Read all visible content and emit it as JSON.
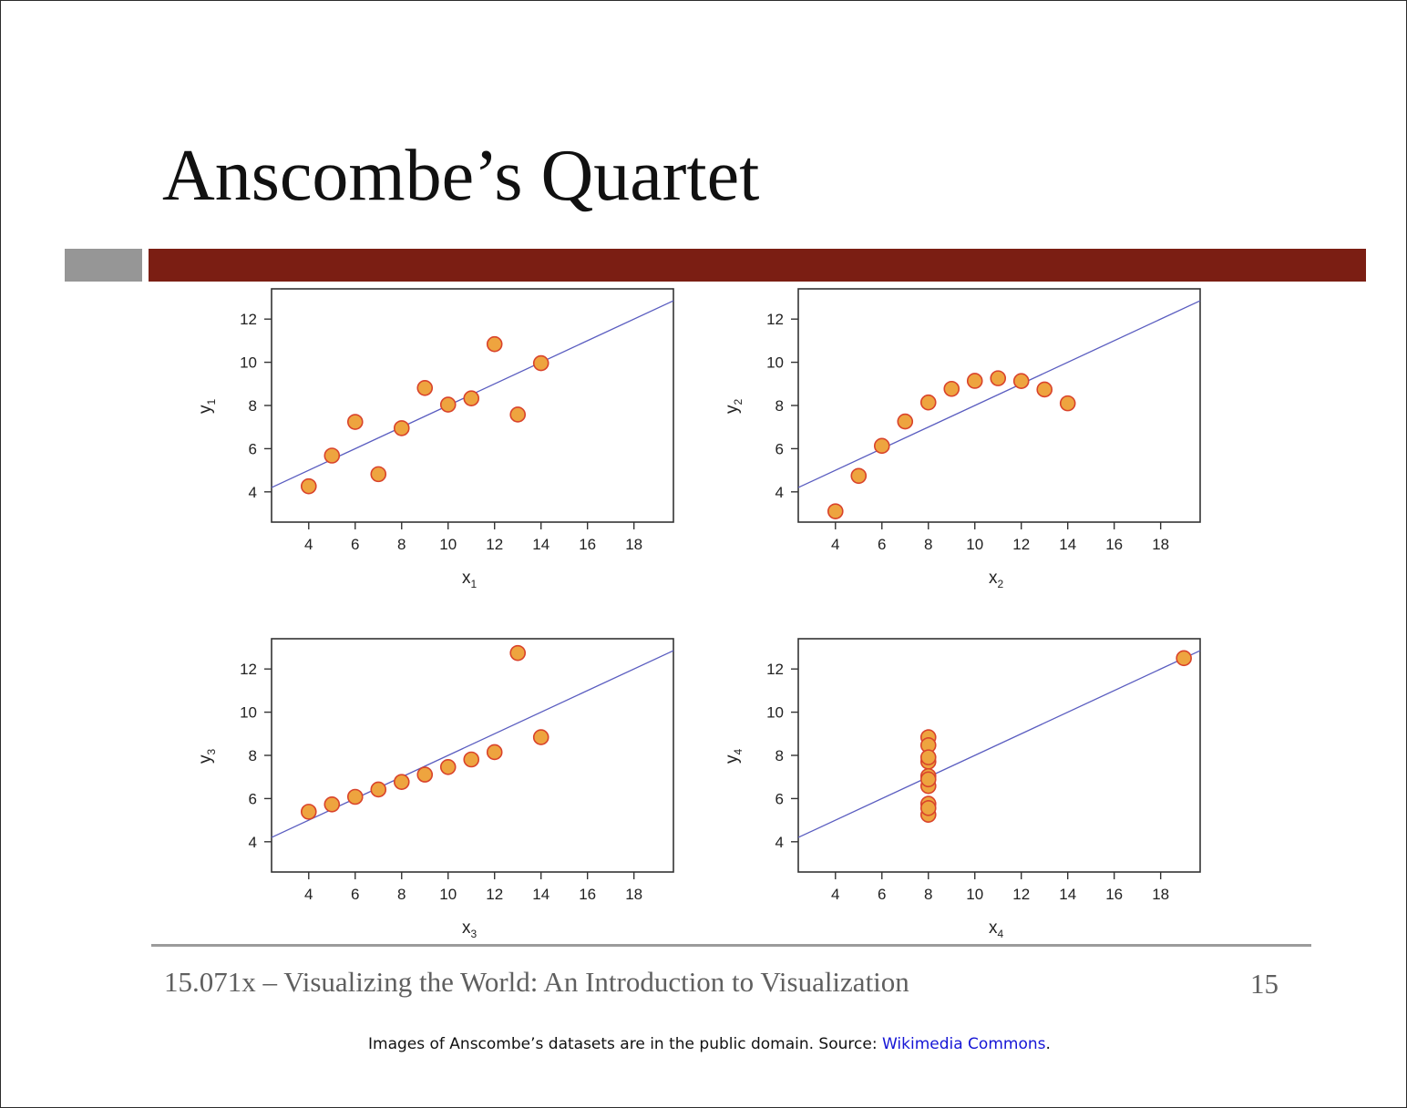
{
  "slide": {
    "title": "Anscombe’s Quartet",
    "footer": "15.071x – Visualizing the World: An Introduction to Visualization",
    "page_number": "15",
    "credit_prefix": "Images of Anscombe’s datasets are in the public domain. Source: ",
    "credit_link": "Wikimedia Commons",
    "credit_suffix": "."
  },
  "colors": {
    "title_bar": "#7b1e13",
    "accent_block": "#969696",
    "point_fill": "#eea43f",
    "point_stroke": "#d9432b",
    "fit_line": "#5a5dc0"
  },
  "chart_data": [
    {
      "type": "scatter",
      "xlabel": "x",
      "xlabel_sub": "1",
      "ylabel": "y",
      "ylabel_sub": "1",
      "xlim": [
        2.4,
        19.7
      ],
      "ylim": [
        2.6,
        13.4
      ],
      "xticks": [
        4,
        6,
        8,
        10,
        12,
        14,
        16,
        18
      ],
      "yticks": [
        4,
        6,
        8,
        10,
        12
      ],
      "x": [
        10,
        8,
        13,
        9,
        11,
        14,
        6,
        4,
        12,
        7,
        5
      ],
      "y": [
        8.04,
        6.95,
        7.58,
        8.81,
        8.33,
        9.96,
        7.24,
        4.26,
        10.84,
        4.82,
        5.68
      ],
      "fit": {
        "intercept": 3.0,
        "slope": 0.5
      }
    },
    {
      "type": "scatter",
      "xlabel": "x",
      "xlabel_sub": "2",
      "ylabel": "y",
      "ylabel_sub": "2",
      "xlim": [
        2.4,
        19.7
      ],
      "ylim": [
        2.6,
        13.4
      ],
      "xticks": [
        4,
        6,
        8,
        10,
        12,
        14,
        16,
        18
      ],
      "yticks": [
        4,
        6,
        8,
        10,
        12
      ],
      "x": [
        10,
        8,
        13,
        9,
        11,
        14,
        6,
        4,
        12,
        7,
        5
      ],
      "y": [
        9.14,
        8.14,
        8.74,
        8.77,
        9.26,
        8.1,
        6.13,
        3.1,
        9.13,
        7.26,
        4.74
      ],
      "fit": {
        "intercept": 3.0,
        "slope": 0.5
      }
    },
    {
      "type": "scatter",
      "xlabel": "x",
      "xlabel_sub": "3",
      "ylabel": "y",
      "ylabel_sub": "3",
      "xlim": [
        2.4,
        19.7
      ],
      "ylim": [
        2.6,
        13.4
      ],
      "xticks": [
        4,
        6,
        8,
        10,
        12,
        14,
        16,
        18
      ],
      "yticks": [
        4,
        6,
        8,
        10,
        12
      ],
      "x": [
        10,
        8,
        13,
        9,
        11,
        14,
        6,
        4,
        12,
        7,
        5
      ],
      "y": [
        7.46,
        6.77,
        12.74,
        7.11,
        7.81,
        8.84,
        6.08,
        5.39,
        8.15,
        6.42,
        5.73
      ],
      "fit": {
        "intercept": 3.0,
        "slope": 0.5
      }
    },
    {
      "type": "scatter",
      "xlabel": "x",
      "xlabel_sub": "4",
      "ylabel": "y",
      "ylabel_sub": "4",
      "xlim": [
        2.4,
        19.7
      ],
      "ylim": [
        2.6,
        13.4
      ],
      "xticks": [
        4,
        6,
        8,
        10,
        12,
        14,
        16,
        18
      ],
      "yticks": [
        4,
        6,
        8,
        10,
        12
      ],
      "x": [
        8,
        8,
        8,
        8,
        8,
        8,
        8,
        19,
        8,
        8,
        8
      ],
      "y": [
        6.58,
        5.76,
        7.71,
        8.84,
        8.47,
        7.04,
        5.25,
        12.5,
        5.56,
        7.91,
        6.89
      ],
      "fit": {
        "intercept": 3.0,
        "slope": 0.5
      }
    }
  ]
}
